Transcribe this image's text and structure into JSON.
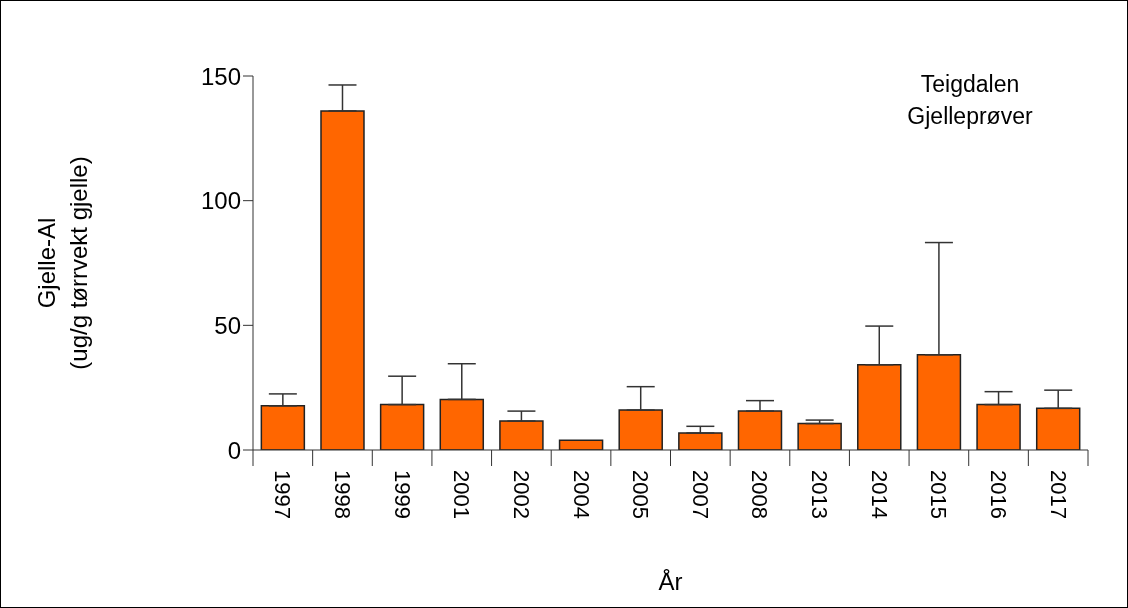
{
  "chart_data": {
    "type": "bar",
    "xlabel": "År",
    "ylabel": "Gjelle-Al\n(ug/g tørrvekt gjelle)",
    "annotations": [
      "Teigdalen",
      "Gjelleprøver"
    ],
    "categories": [
      "1997",
      "1998",
      "1999",
      "2001",
      "2002",
      "2004",
      "2005",
      "2007",
      "2008",
      "2013",
      "2014",
      "2015",
      "2016",
      "2017"
    ],
    "values": [
      17.7,
      136,
      18.2,
      20.3,
      11.6,
      3.9,
      16,
      6.8,
      15.6,
      10.6,
      34.2,
      38.2,
      18.2,
      16.7
    ],
    "errors": [
      [
        17.7,
        22.5
      ],
      [
        136,
        146.4
      ],
      [
        18.2,
        29.6
      ],
      [
        20.3,
        34.6
      ],
      [
        11.6,
        15.6
      ],
      null,
      [
        16,
        25.4
      ],
      [
        6.8,
        9.5
      ],
      [
        15.6,
        19.8
      ],
      [
        10.6,
        12
      ],
      [
        34.2,
        49.7
      ],
      [
        38.2,
        83.2
      ],
      [
        18.2,
        23.4
      ],
      [
        16.7,
        24
      ]
    ],
    "color": "#ff6600",
    "ylim": [
      0,
      150
    ],
    "yticks": [
      0,
      50,
      100,
      150
    ],
    "grid": false,
    "legend": false
  }
}
